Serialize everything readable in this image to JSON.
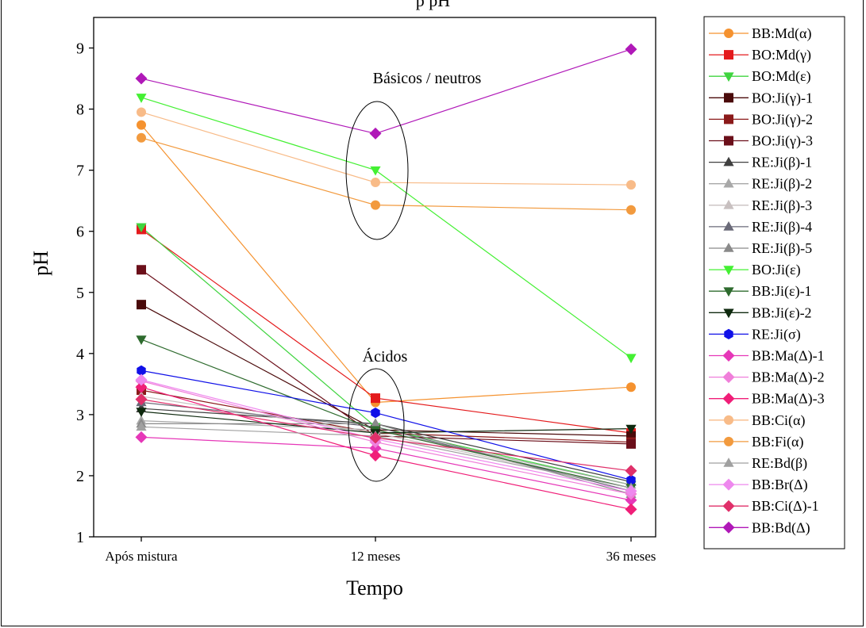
{
  "header_fragment": "p                                          pH",
  "chart_data": {
    "type": "line",
    "title": "",
    "xlabel": "Tempo",
    "ylabel": "pH",
    "ylim": [
      1,
      9.5
    ],
    "yticks": [
      "1",
      "2",
      "3",
      "4",
      "5",
      "6",
      "7",
      "8",
      "9"
    ],
    "categories": [
      "Após mistura",
      "12 meses",
      "36 meses"
    ],
    "grid": false,
    "legend_position": "right",
    "annotations": [
      {
        "text": "Básicos / neutros",
        "group": "basic"
      },
      {
        "text": "Ácidos",
        "group": "acid"
      }
    ],
    "series": [
      {
        "name": "BB:Md(α)",
        "marker": "circle",
        "color": "#F5922F",
        "values": [
          7.74,
          3.2,
          3.45
        ]
      },
      {
        "name": "BO:Md(γ)",
        "marker": "square",
        "color": "#E41A1C",
        "values": [
          6.03,
          3.27,
          2.7
        ]
      },
      {
        "name": "BO:Md(ε)",
        "marker": "tri-down",
        "color": "#3FD43F",
        "values": [
          6.07,
          2.8,
          1.85
        ]
      },
      {
        "name": "BO:Ji(γ)-1",
        "marker": "square",
        "color": "#4A0A0A",
        "values": [
          4.8,
          2.75,
          2.65
        ]
      },
      {
        "name": "BO:Ji(γ)-2",
        "marker": "square",
        "color": "#8B1A1A",
        "values": [
          3.4,
          2.7,
          2.55
        ]
      },
      {
        "name": "BO:Ji(γ)-3",
        "marker": "square",
        "color": "#6B0F1A",
        "values": [
          5.37,
          2.65,
          2.52
        ]
      },
      {
        "name": "RE:Ji(β)-1",
        "marker": "tri-up",
        "color": "#404040",
        "values": [
          3.1,
          2.85,
          1.9
        ]
      },
      {
        "name": "RE:Ji(β)-2",
        "marker": "tri-up",
        "color": "#A8A8A8",
        "values": [
          2.9,
          2.75,
          1.85
        ]
      },
      {
        "name": "RE:Ji(β)-3",
        "marker": "tri-up",
        "color": "#C8C0C0",
        "values": [
          3.3,
          2.7,
          1.8
        ]
      },
      {
        "name": "RE:Ji(β)-4",
        "marker": "tri-up",
        "color": "#6A6A78",
        "values": [
          3.2,
          2.8,
          1.75
        ]
      },
      {
        "name": "RE:Ji(β)-5",
        "marker": "tri-up",
        "color": "#8A8A8A",
        "values": [
          2.85,
          2.85,
          1.7
        ]
      },
      {
        "name": "BO:Ji(ε)",
        "marker": "tri-down",
        "color": "#44F033",
        "values": [
          8.19,
          7.0,
          3.93
        ]
      },
      {
        "name": "BB:Ji(ε)-1",
        "marker": "tri-down",
        "color": "#2E6B2E",
        "values": [
          4.23,
          2.75,
          1.8
        ]
      },
      {
        "name": "BB:Ji(ε)-2",
        "marker": "tri-down",
        "color": "#0F2A0F",
        "values": [
          3.05,
          2.7,
          2.77
        ]
      },
      {
        "name": "RE:Ji(σ)",
        "marker": "hexagon",
        "color": "#1010E8",
        "values": [
          3.72,
          3.03,
          1.93
        ]
      },
      {
        "name": "BB:Ma(Δ)-1",
        "marker": "diamond",
        "color": "#E637B8",
        "values": [
          2.63,
          2.45,
          1.6
        ]
      },
      {
        "name": "BB:Ma(Δ)-2",
        "marker": "diamond",
        "color": "#F07FDA",
        "values": [
          3.55,
          2.55,
          1.7
        ]
      },
      {
        "name": "BB:Ma(Δ)-3",
        "marker": "diamond",
        "color": "#F01E78",
        "values": [
          3.45,
          2.33,
          1.45
        ]
      },
      {
        "name": "BB:Ci(α)",
        "marker": "circle",
        "color": "#F8BB88",
        "values": [
          7.95,
          6.8,
          6.76
        ]
      },
      {
        "name": "BB:Fi(α)",
        "marker": "circle",
        "color": "#F29A3E",
        "values": [
          7.53,
          6.43,
          6.35
        ]
      },
      {
        "name": "RE:Bd(β)",
        "marker": "tri-up",
        "color": "#A0A0A0",
        "values": [
          2.8,
          2.65,
          1.8
        ]
      },
      {
        "name": "BB:Br(Δ)",
        "marker": "diamond",
        "color": "#EE88EE",
        "values": [
          3.57,
          2.6,
          1.75
        ]
      },
      {
        "name": "BB:Ci(Δ)-1",
        "marker": "diamond",
        "color": "#E0306A",
        "values": [
          3.25,
          2.62,
          2.08
        ]
      },
      {
        "name": "BB:Bd(Δ)",
        "marker": "diamond",
        "color": "#B018B8",
        "values": [
          8.5,
          7.6,
          8.98
        ]
      }
    ]
  }
}
